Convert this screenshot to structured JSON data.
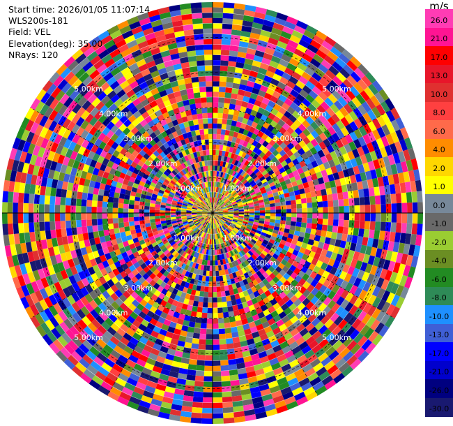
{
  "header": {
    "start_time": "Start time: 2026/01/05 11:07:14",
    "instrument": "WLS200s-181",
    "field": "Field: VEL",
    "elevation": "Elevation(deg): 35.00",
    "nrays": "NRays: 120"
  },
  "chart_data": {
    "type": "heatmap",
    "projection": "polar-ppi",
    "field": "VEL",
    "units": "m/s",
    "elevation_deg": 35.0,
    "n_rays": 120,
    "max_range_km": 6.0,
    "ring_labels_km": [
      "1.00km",
      "2.00km",
      "3.00km",
      "4.00km",
      "5.00km"
    ],
    "colorbar": {
      "unit_label": "m/s",
      "tick_labels": [
        "26.0",
        "21.0",
        "17.0",
        "13.0",
        "10.0",
        "8.0",
        "6.0",
        "4.0",
        "2.0",
        "1.0",
        "0.0",
        "-1.0",
        "-2.0",
        "-4.0",
        "-6.0",
        "-8.0",
        "-10.0",
        "-13.0",
        "-17.0",
        "-21.0",
        "-26.0",
        "-30.0"
      ],
      "colors_top_to_bottom": [
        "#ff3cb4",
        "#ff1493",
        "#ff0000",
        "#e8162a",
        "#e03030",
        "#ff4040",
        "#ff6a4a",
        "#ff8c00",
        "#ffd700",
        "#ffff00",
        "#778899",
        "#696969",
        "#9acd32",
        "#6b8e23",
        "#228b22",
        "#2e8b57",
        "#1e90ff",
        "#3f5fd6",
        "#0000ff",
        "#0000cd",
        "#000080",
        "#191970"
      ]
    }
  }
}
